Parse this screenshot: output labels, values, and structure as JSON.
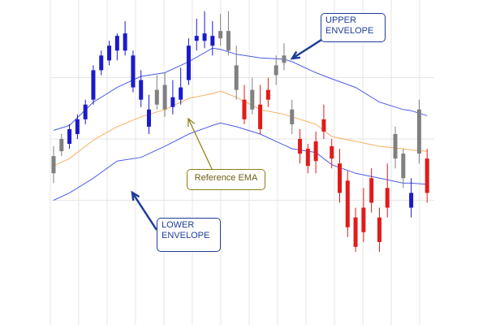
{
  "chart_data": {
    "type": "line",
    "title": "",
    "xlabel": "",
    "ylabel": "",
    "grid": true,
    "ylim": [
      0,
      100
    ],
    "xlim": [
      0,
      48
    ],
    "colors": {
      "upper_envelope": "#4d5ce6",
      "lower_envelope": "#4d5ce6",
      "ema": "#f5b060",
      "candle_up": "#1a1acc",
      "candle_down": "#e31a1a",
      "candle_neutral": "#808080",
      "annotation_blue": "#1f3d99",
      "annotation_gold": "#8c7d12"
    },
    "series": [
      {
        "name": "UPPER ENVELOPE",
        "x": [
          0,
          2,
          5,
          8,
          11,
          14,
          17,
          20,
          21,
          23,
          26,
          29,
          30,
          33,
          35,
          38,
          41,
          44,
          45,
          47
        ],
        "values": [
          53.5,
          55.5,
          65,
          71,
          75.5,
          77,
          81.5,
          87,
          86.5,
          84.5,
          83,
          82.5,
          81.5,
          77,
          74.5,
          71,
          65,
          62,
          61.5,
          59.5
        ]
      },
      {
        "name": "Reference EMA",
        "x": [
          0,
          2,
          5,
          8,
          11,
          14,
          17,
          20,
          21,
          23,
          26,
          29,
          30,
          33,
          35,
          38,
          41,
          44,
          45,
          47
        ],
        "values": [
          39,
          42,
          49.5,
          55,
          59,
          62,
          66.5,
          68.5,
          69.5,
          67,
          62,
          60,
          59,
          56,
          51,
          49,
          47,
          46,
          45.5,
          45
        ]
      },
      {
        "name": "LOWER ENVELOPE",
        "x": [
          0,
          2,
          5,
          8,
          11,
          14,
          17,
          20,
          21,
          23,
          26,
          29,
          30,
          33,
          35,
          38,
          41,
          44,
          45,
          47
        ],
        "values": [
          25,
          28,
          34,
          41,
          42.5,
          47,
          52,
          55.5,
          56.5,
          55,
          52,
          47.5,
          46,
          44.5,
          39.5,
          36,
          34,
          32,
          32,
          31.5
        ]
      }
    ],
    "candles": [
      {
        "x": 0,
        "o": 36,
        "h": 47,
        "l": 32,
        "c": 43,
        "color": "neutral"
      },
      {
        "x": 1,
        "o": 45,
        "h": 52,
        "l": 43,
        "c": 50,
        "color": "neutral"
      },
      {
        "x": 2,
        "o": 48,
        "h": 56,
        "l": 46,
        "c": 54,
        "color": "up"
      },
      {
        "x": 3,
        "o": 52,
        "h": 60,
        "l": 50,
        "c": 58,
        "color": "up"
      },
      {
        "x": 4,
        "o": 58,
        "h": 66,
        "l": 56,
        "c": 64,
        "color": "up"
      },
      {
        "x": 5,
        "o": 66,
        "h": 80,
        "l": 64,
        "c": 78,
        "color": "up"
      },
      {
        "x": 6,
        "o": 78,
        "h": 86,
        "l": 76,
        "c": 84,
        "color": "up"
      },
      {
        "x": 7,
        "o": 82,
        "h": 90,
        "l": 80,
        "c": 88,
        "color": "up"
      },
      {
        "x": 8,
        "o": 86,
        "h": 93,
        "l": 82,
        "c": 92,
        "color": "up"
      },
      {
        "x": 9,
        "o": 93,
        "h": 98,
        "l": 84,
        "c": 86,
        "color": "up"
      },
      {
        "x": 10,
        "o": 84,
        "h": 86,
        "l": 69,
        "c": 71,
        "color": "up"
      },
      {
        "x": 11,
        "o": 74,
        "h": 78,
        "l": 63,
        "c": 66,
        "color": "up"
      },
      {
        "x": 12,
        "o": 62,
        "h": 68,
        "l": 52,
        "c": 55,
        "color": "up"
      },
      {
        "x": 13,
        "o": 70,
        "h": 76,
        "l": 62,
        "c": 64,
        "color": "neutral"
      },
      {
        "x": 14,
        "o": 72,
        "h": 77,
        "l": 59,
        "c": 62,
        "color": "neutral"
      },
      {
        "x": 15,
        "o": 67,
        "h": 74,
        "l": 60,
        "c": 63,
        "color": "up"
      },
      {
        "x": 16,
        "o": 71,
        "h": 79,
        "l": 64,
        "c": 66,
        "color": "up"
      },
      {
        "x": 17,
        "o": 74,
        "h": 91,
        "l": 72,
        "c": 88,
        "color": "up"
      },
      {
        "x": 18,
        "o": 92,
        "h": 99,
        "l": 86,
        "c": 90,
        "color": "up"
      },
      {
        "x": 19,
        "o": 93,
        "h": 102,
        "l": 87,
        "c": 90,
        "color": "up"
      },
      {
        "x": 20,
        "o": 88,
        "h": 98,
        "l": 84,
        "c": 92,
        "color": "up"
      },
      {
        "x": 21,
        "o": 94,
        "h": 101,
        "l": 88,
        "c": 91,
        "color": "neutral"
      },
      {
        "x": 22,
        "o": 94,
        "h": 102,
        "l": 84,
        "c": 86,
        "color": "neutral"
      },
      {
        "x": 23,
        "o": 80,
        "h": 88,
        "l": 66,
        "c": 70,
        "color": "neutral"
      },
      {
        "x": 24,
        "o": 66,
        "h": 72,
        "l": 56,
        "c": 58,
        "color": "down"
      },
      {
        "x": 25,
        "o": 70,
        "h": 75,
        "l": 60,
        "c": 62,
        "color": "neutral"
      },
      {
        "x": 26,
        "o": 64,
        "h": 72,
        "l": 52,
        "c": 54,
        "color": "down"
      },
      {
        "x": 27,
        "o": 70,
        "h": 75,
        "l": 63,
        "c": 66,
        "color": "down"
      },
      {
        "x": 28,
        "o": 80,
        "h": 84,
        "l": 72,
        "c": 76,
        "color": "neutral"
      },
      {
        "x": 29,
        "o": 84,
        "h": 89,
        "l": 78,
        "c": 81,
        "color": "neutral"
      },
      {
        "x": 30,
        "o": 62,
        "h": 66,
        "l": 52,
        "c": 56,
        "color": "neutral"
      },
      {
        "x": 31,
        "o": 50,
        "h": 54,
        "l": 40,
        "c": 44,
        "color": "down"
      },
      {
        "x": 32,
        "o": 46,
        "h": 48,
        "l": 36,
        "c": 39,
        "color": "down"
      },
      {
        "x": 33,
        "o": 49,
        "h": 53,
        "l": 36,
        "c": 41,
        "color": "down"
      },
      {
        "x": 34,
        "o": 58,
        "h": 64,
        "l": 50,
        "c": 53,
        "color": "down"
      },
      {
        "x": 35,
        "o": 47,
        "h": 50,
        "l": 38,
        "c": 42,
        "color": "down"
      },
      {
        "x": 36,
        "o": 40,
        "h": 46,
        "l": 24,
        "c": 28,
        "color": "down"
      },
      {
        "x": 37,
        "o": 33,
        "h": 37,
        "l": 10,
        "c": 14,
        "color": "down"
      },
      {
        "x": 38,
        "o": 18,
        "h": 22,
        "l": 4,
        "c": 6,
        "color": "down"
      },
      {
        "x": 39,
        "o": 22,
        "h": 30,
        "l": 8,
        "c": 12,
        "color": "down"
      },
      {
        "x": 40,
        "o": 34,
        "h": 38,
        "l": 20,
        "c": 24,
        "color": "down"
      },
      {
        "x": 41,
        "o": 18,
        "h": 22,
        "l": 4,
        "c": 8,
        "color": "down"
      },
      {
        "x": 42,
        "o": 30,
        "h": 40,
        "l": 18,
        "c": 22,
        "color": "down"
      },
      {
        "x": 43,
        "o": 52,
        "h": 55,
        "l": 38,
        "c": 42,
        "color": "neutral"
      },
      {
        "x": 44,
        "o": 44,
        "h": 46,
        "l": 30,
        "c": 34,
        "color": "neutral"
      },
      {
        "x": 45,
        "o": 28,
        "h": 34,
        "l": 18,
        "c": 22,
        "color": "up"
      },
      {
        "x": 46,
        "o": 62,
        "h": 66,
        "l": 40,
        "c": 44,
        "color": "neutral"
      },
      {
        "x": 47,
        "o": 42,
        "h": 46,
        "l": 24,
        "c": 28,
        "color": "down"
      }
    ],
    "annotations": [
      {
        "text": "UPPER\nENVELOPE",
        "color": "#1f3d99"
      },
      {
        "text": "LOWER\nENVELOPE",
        "color": "#1f3d99"
      },
      {
        "text": "Reference EMA",
        "color": "#8c7d12"
      }
    ]
  }
}
